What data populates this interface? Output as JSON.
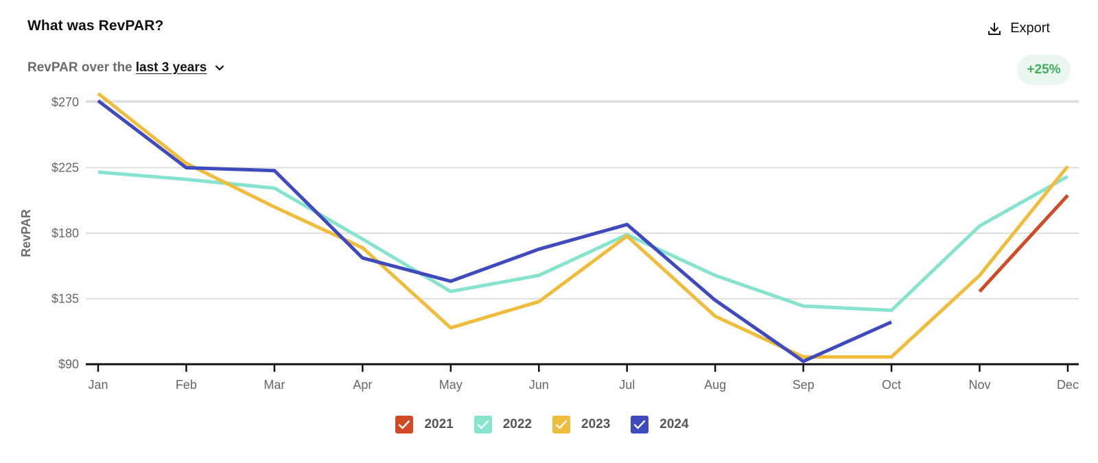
{
  "header": {
    "title": "What was RevPAR?",
    "export_label": "Export",
    "subtitle_prefix": "RevPAR over the",
    "range_label": "last 3 years",
    "change_badge": "+25%",
    "badge_color": "#3fae5f"
  },
  "legend": [
    {
      "label": "2021",
      "color": "#d04a25",
      "checked": true
    },
    {
      "label": "2022",
      "color": "#86e3cf",
      "checked": true
    },
    {
      "label": "2023",
      "color": "#f0bc3b",
      "checked": true
    },
    {
      "label": "2024",
      "color": "#3f4bbd",
      "checked": true
    }
  ],
  "chart_data": {
    "type": "line",
    "ylabel": "RevPAR",
    "xlabel": "",
    "categories": [
      "Jan",
      "Feb",
      "Mar",
      "Apr",
      "May",
      "Jun",
      "Jul",
      "Aug",
      "Sep",
      "Oct",
      "Nov",
      "Dec"
    ],
    "yticks": [
      90,
      135,
      180,
      225,
      270
    ],
    "ytick_labels": [
      "$90",
      "$135",
      "$180",
      "$225",
      "$270"
    ],
    "ylim": [
      90,
      278
    ],
    "grid": true,
    "legend_position": "bottom-center",
    "series": [
      {
        "name": "2021",
        "color": "#d04a25",
        "values": [
          null,
          null,
          null,
          null,
          null,
          null,
          null,
          null,
          null,
          null,
          140,
          206
        ]
      },
      {
        "name": "2022",
        "color": "#86e3cf",
        "values": [
          222,
          217,
          211,
          176,
          140,
          151,
          179,
          151,
          130,
          127,
          185,
          219
        ]
      },
      {
        "name": "2023",
        "color": "#f0bc3b",
        "values": [
          276,
          228,
          198,
          170,
          115,
          133,
          178,
          123,
          95,
          95,
          151,
          226
        ]
      },
      {
        "name": "2024",
        "color": "#3f4bbd",
        "values": [
          271,
          225,
          223,
          163,
          147,
          169,
          186,
          134,
          92,
          119,
          null,
          null
        ]
      }
    ]
  }
}
